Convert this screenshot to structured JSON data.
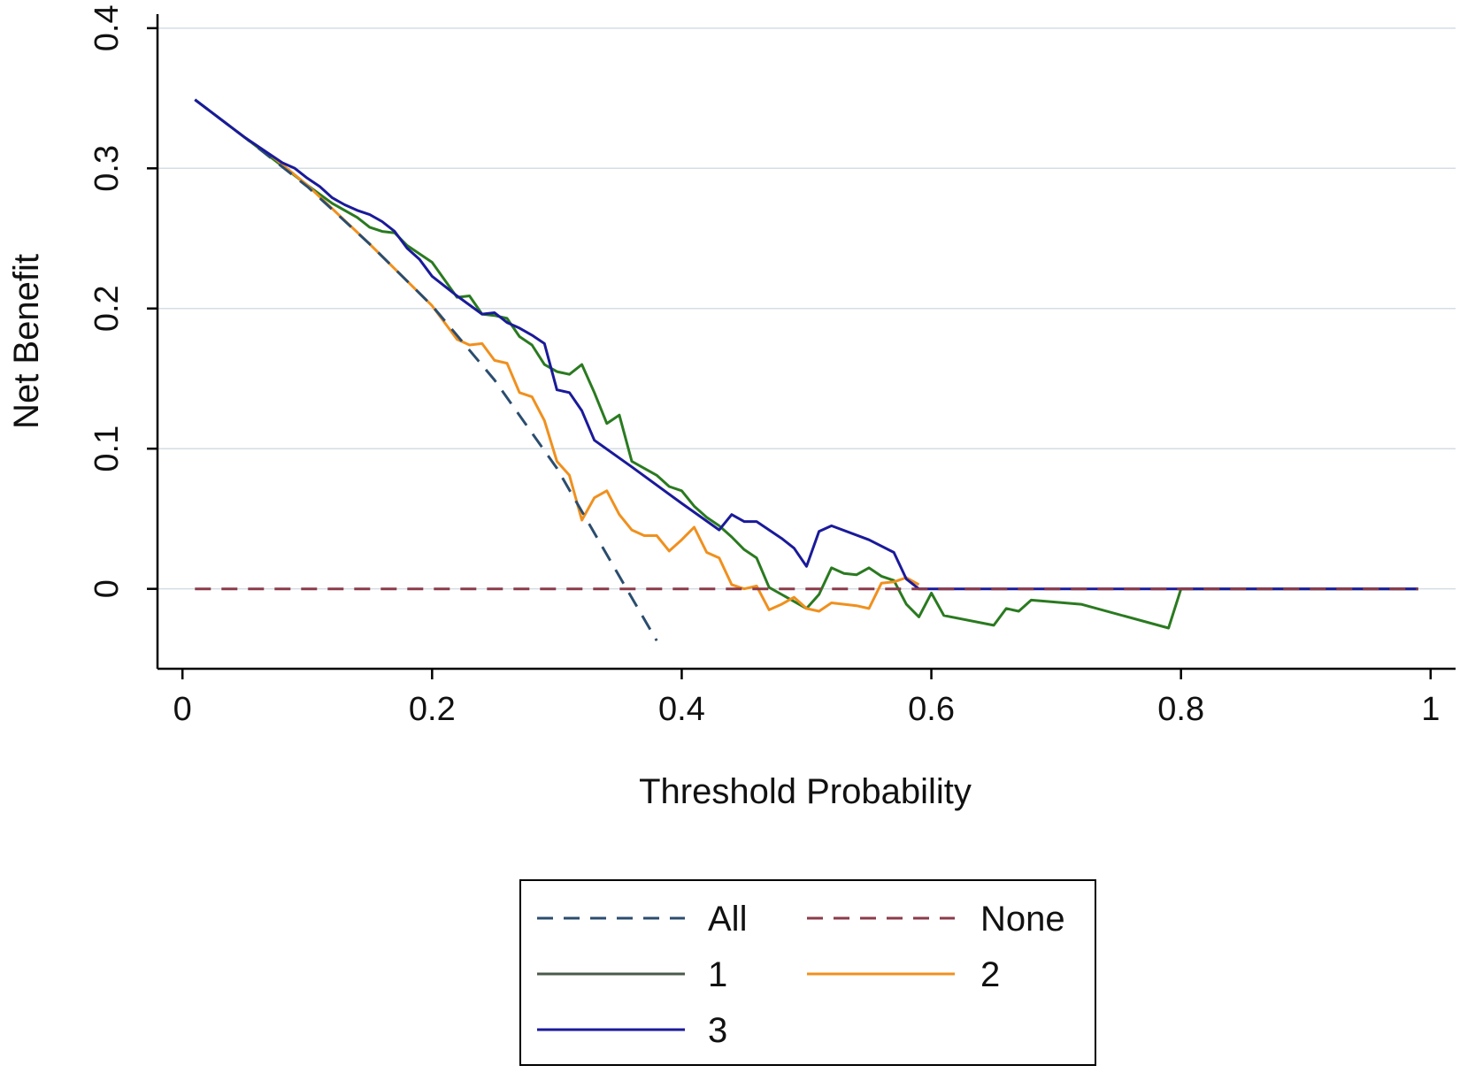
{
  "chart_data": {
    "type": "line",
    "title": "",
    "xlabel": "Threshold Probability",
    "ylabel": "Net Benefit",
    "xlim": [
      -0.02,
      1.02
    ],
    "ylim": [
      -0.057,
      0.41
    ],
    "xticks": [
      0,
      0.2,
      0.4,
      0.6,
      0.8,
      1
    ],
    "xtick_labels": [
      "0",
      "0.2",
      "0.4",
      "0.6",
      "0.8",
      "1"
    ],
    "yticks": [
      0,
      0.1,
      0.2,
      0.3,
      0.4
    ],
    "ytick_labels": [
      "0",
      "0.1",
      "0.2",
      "0.3",
      "0.4"
    ],
    "grid": "horizontal",
    "legend_position": "bottom",
    "series": [
      {
        "name": "All",
        "color": "#2b4d6e",
        "dash": "dashed",
        "x": [
          0.01,
          0.05,
          0.1,
          0.15,
          0.2,
          0.25,
          0.3,
          0.35,
          0.38
        ],
        "y": [
          0.349,
          0.322,
          0.287,
          0.246,
          0.202,
          0.149,
          0.086,
          0.009,
          -0.037
        ]
      },
      {
        "name": "None",
        "color": "#8b3a4a",
        "dash": "dashed",
        "x": [
          0.01,
          0.99
        ],
        "y": [
          0,
          0
        ]
      },
      {
        "name": "1",
        "color": "#2a7a20",
        "legend_color": "#4a5a4a",
        "dash": "solid",
        "x": [
          0.01,
          0.05,
          0.1,
          0.12,
          0.14,
          0.15,
          0.16,
          0.17,
          0.18,
          0.2,
          0.22,
          0.23,
          0.24,
          0.25,
          0.26,
          0.27,
          0.28,
          0.29,
          0.3,
          0.31,
          0.32,
          0.33,
          0.34,
          0.35,
          0.36,
          0.37,
          0.38,
          0.39,
          0.4,
          0.41,
          0.42,
          0.43,
          0.44,
          0.45,
          0.46,
          0.47,
          0.48,
          0.49,
          0.5,
          0.51,
          0.52,
          0.53,
          0.54,
          0.55,
          0.56,
          0.57,
          0.58,
          0.59,
          0.6,
          0.61,
          0.65,
          0.66,
          0.67,
          0.68,
          0.72,
          0.79,
          0.8,
          0.99
        ],
        "y": [
          0.349,
          0.322,
          0.288,
          0.275,
          0.265,
          0.258,
          0.255,
          0.254,
          0.245,
          0.233,
          0.208,
          0.209,
          0.196,
          0.195,
          0.193,
          0.18,
          0.174,
          0.16,
          0.155,
          0.153,
          0.16,
          0.14,
          0.118,
          0.124,
          0.091,
          0.086,
          0.081,
          0.073,
          0.07,
          0.059,
          0.051,
          0.045,
          0.037,
          0.028,
          0.022,
          0.001,
          -0.004,
          -0.009,
          -0.014,
          -0.004,
          0.015,
          0.011,
          0.01,
          0.015,
          0.009,
          0.006,
          -0.011,
          -0.02,
          -0.003,
          -0.019,
          -0.026,
          -0.014,
          -0.016,
          -0.008,
          -0.011,
          -0.028,
          0,
          0
        ]
      },
      {
        "name": "2",
        "color": "#f0901e",
        "dash": "solid",
        "x": [
          0.07,
          0.1,
          0.15,
          0.2,
          0.21,
          0.22,
          0.23,
          0.24,
          0.25,
          0.26,
          0.27,
          0.28,
          0.29,
          0.3,
          0.31,
          0.32,
          0.33,
          0.34,
          0.35,
          0.36,
          0.37,
          0.38,
          0.39,
          0.4,
          0.41,
          0.42,
          0.43,
          0.44,
          0.45,
          0.46,
          0.47,
          0.48,
          0.49,
          0.5,
          0.51,
          0.52,
          0.53,
          0.54,
          0.55,
          0.56,
          0.57,
          0.58,
          0.59
        ],
        "y": [
          0.31,
          0.288,
          0.246,
          0.202,
          0.19,
          0.178,
          0.174,
          0.175,
          0.163,
          0.161,
          0.14,
          0.137,
          0.12,
          0.091,
          0.081,
          0.049,
          0.065,
          0.07,
          0.053,
          0.042,
          0.038,
          0.038,
          0.027,
          0.035,
          0.044,
          0.026,
          0.022,
          0.003,
          0.0,
          0.002,
          -0.015,
          -0.011,
          -0.006,
          -0.014,
          -0.016,
          -0.01,
          -0.011,
          -0.012,
          -0.014,
          0.004,
          0.005,
          0.008,
          0.003
        ]
      },
      {
        "name": "3",
        "color": "#1a1a9a",
        "dash": "solid",
        "x": [
          0.01,
          0.05,
          0.07,
          0.08,
          0.09,
          0.1,
          0.11,
          0.12,
          0.13,
          0.14,
          0.15,
          0.16,
          0.17,
          0.18,
          0.19,
          0.2,
          0.22,
          0.24,
          0.25,
          0.26,
          0.27,
          0.28,
          0.29,
          0.3,
          0.31,
          0.32,
          0.33,
          0.36,
          0.4,
          0.43,
          0.44,
          0.45,
          0.46,
          0.47,
          0.48,
          0.49,
          0.5,
          0.51,
          0.52,
          0.55,
          0.57,
          0.58,
          0.59,
          0.99
        ],
        "y": [
          0.349,
          0.322,
          0.31,
          0.304,
          0.3,
          0.293,
          0.287,
          0.279,
          0.274,
          0.27,
          0.267,
          0.262,
          0.255,
          0.243,
          0.235,
          0.223,
          0.209,
          0.196,
          0.197,
          0.19,
          0.186,
          0.181,
          0.175,
          0.142,
          0.14,
          0.127,
          0.106,
          0.087,
          0.061,
          0.042,
          0.053,
          0.048,
          0.048,
          0.042,
          0.036,
          0.029,
          0.016,
          0.041,
          0.045,
          0.035,
          0.026,
          0.007,
          0,
          0
        ]
      }
    ]
  }
}
